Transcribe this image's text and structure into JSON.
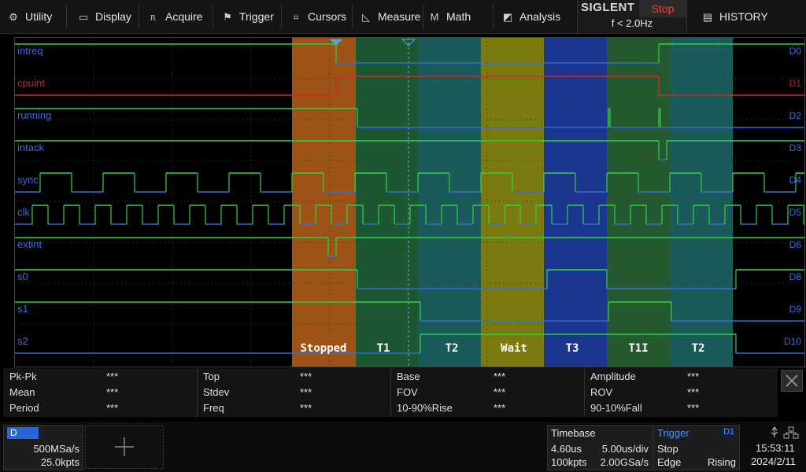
{
  "menu": {
    "utility": "Utility",
    "display": "Display",
    "acquire": "Acquire",
    "trigger": "Trigger",
    "cursors": "Cursors",
    "measure": "Measure",
    "math": "Math",
    "analysis": "Analysis",
    "history": "HISTORY"
  },
  "brand": {
    "logo": "SIGLENT",
    "state": "Stop",
    "freq": "f < 2.0Hz"
  },
  "channels": [
    {
      "name": "intreq",
      "tag": "D0",
      "color": "#2f6fd8"
    },
    {
      "name": "cpuint",
      "tag": "D1",
      "color": "#c42020"
    },
    {
      "name": "running",
      "tag": "D2",
      "color": "#2f6fd8"
    },
    {
      "name": "intack",
      "tag": "D3",
      "color": "#2f6fd8"
    },
    {
      "name": "sync",
      "tag": "D4",
      "color": "#2f6fd8"
    },
    {
      "name": "clk",
      "tag": "D5",
      "color": "#2f6fd8"
    },
    {
      "name": "extint",
      "tag": "D6",
      "color": "#2f6fd8"
    },
    {
      "name": "s0",
      "tag": "D8",
      "color": "#2f6fd8"
    },
    {
      "name": "s1",
      "tag": "D9",
      "color": "#2f6fd8"
    },
    {
      "name": "s2",
      "tag": "D10",
      "color": "#2f6fd8"
    }
  ],
  "states": [
    {
      "label": "Stopped",
      "color": "#b8621a"
    },
    {
      "label": "T1",
      "color": "#22663a"
    },
    {
      "label": "T2",
      "color": "#1f6a68"
    },
    {
      "label": "Wait",
      "color": "#8f8f12"
    },
    {
      "label": "T3",
      "color": "#1e3fa8"
    },
    {
      "label": "T1I",
      "color": "#2b6a3a"
    },
    {
      "label": "T2",
      "color": "#1f6a68"
    }
  ],
  "colors": {
    "high": "#33d04a",
    "low": "#2f6fd8",
    "cursor": "#7fa9c9"
  },
  "measurements": [
    {
      "label": "Pk-Pk",
      "value": "***"
    },
    {
      "label": "Top",
      "value": "***"
    },
    {
      "label": "Base",
      "value": "***"
    },
    {
      "label": "Amplitude",
      "value": "***"
    },
    {
      "label": "Mean",
      "value": "***"
    },
    {
      "label": "Stdev",
      "value": "***"
    },
    {
      "label": "FOV",
      "value": "***"
    },
    {
      "label": "ROV",
      "value": "***"
    },
    {
      "label": "Period",
      "value": "***"
    },
    {
      "label": "Freq",
      "value": "***"
    },
    {
      "label": "10-90%Rise",
      "value": "***"
    },
    {
      "label": "90-10%Fall",
      "value": "***"
    }
  ],
  "digital": {
    "tag": "D",
    "rate": "500MSa/s",
    "points": "25.0kpts"
  },
  "timebase": {
    "title": "Timebase",
    "delay": "4.60us",
    "scale": "5.00us/div",
    "points": "100kpts",
    "rate": "2.00GSa/s"
  },
  "trigger": {
    "title": "Trigger",
    "source": "D1",
    "mode": "Stop",
    "type": "Edge",
    "slope": "Rising"
  },
  "clock": {
    "time": "15:53:11",
    "date": "2024/2/11"
  }
}
